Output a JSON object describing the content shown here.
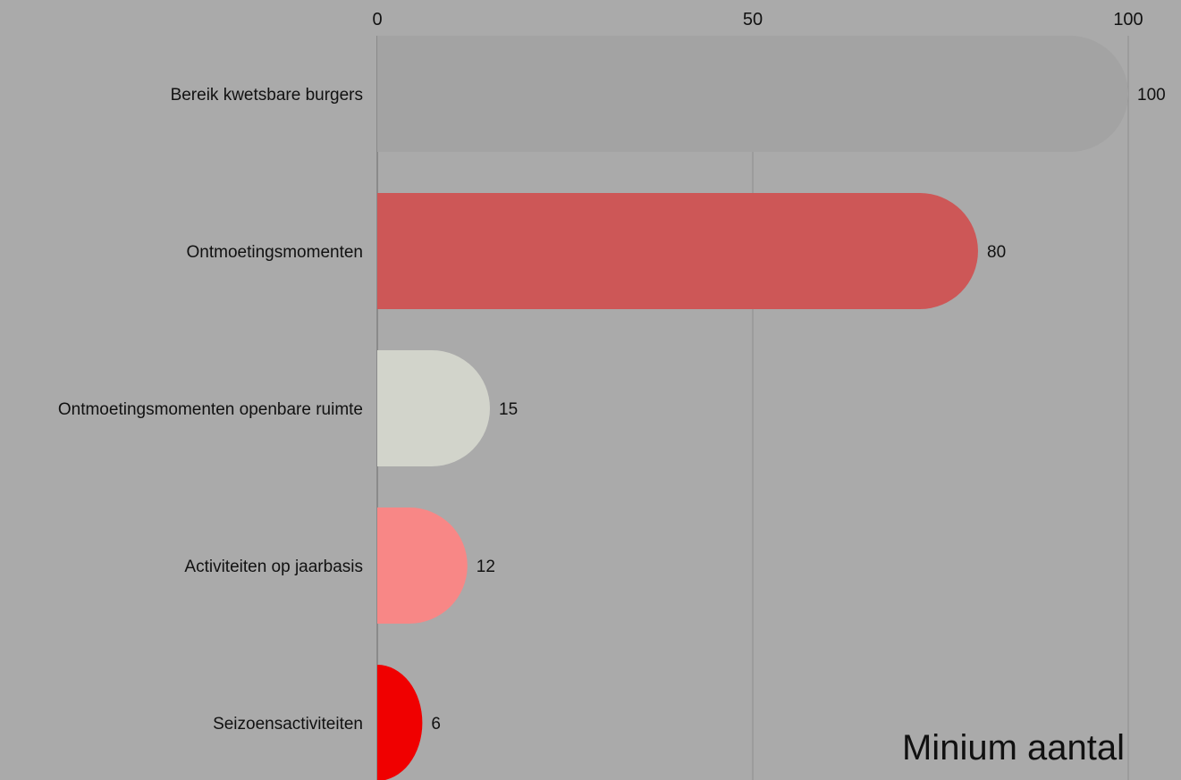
{
  "chart_data": {
    "type": "bar",
    "orientation": "horizontal",
    "title": "Minium aantal",
    "xlabel": "",
    "ylabel": "",
    "xlim": [
      0,
      100
    ],
    "ticks": [
      0,
      50,
      100
    ],
    "grid": true,
    "categories": [
      "Bereik kwetsbare burgers",
      "Ontmoetingsmomenten",
      "Ontmoetingsmomenten openbare ruimte",
      "Activiteiten op jaarbasis",
      "Seizoensactiviteiten"
    ],
    "values": [
      100,
      80,
      15,
      12,
      6
    ],
    "colors": [
      "#a3a3a3",
      "#cd5757",
      "#d2d4cb",
      "#f88786",
      "#f00000"
    ]
  }
}
